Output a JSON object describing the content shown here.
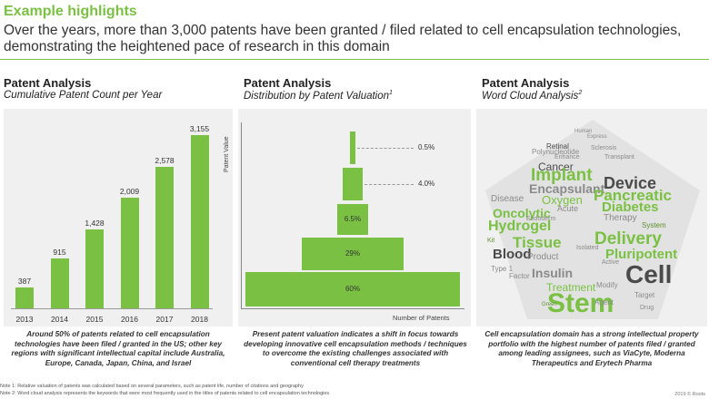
{
  "header": {
    "title": "Example highlights",
    "subtitle": "Over the years, more than 3,000 patents have been granted / filed related to cell encapsulation technologies, demonstrating the heightened pace of research in this domain"
  },
  "panels": [
    {
      "title": "Patent Analysis",
      "subtitle": "Cumulative Patent Count per Year",
      "sup": "",
      "caption": "Around 50% of patents related to cell encapsulation technologies have been filed / granted in the US; other key regions with significant intellectual capital include Australia, Europe, Canada, Japan, China, and Israel"
    },
    {
      "title": "Patent Analysis",
      "subtitle": "Distribution by Patent Valuation",
      "sup": "1",
      "caption": "Present patent valuation indicates a shift in focus towards developing innovative cell encapsulation methods / techniques to overcome the existing challenges associated with conventional cell therapy treatments"
    },
    {
      "title": "Patent Analysis",
      "subtitle": "Word Cloud Analysis",
      "sup": "2",
      "caption": "Cell encapsulation domain has a strong intellectual property portfolio with the highest number of patents filed / granted among leading assignees, such as ViaCyte, Moderna Therapeutics and Erytech Pharma"
    }
  ],
  "chart_data": [
    {
      "type": "bar",
      "categories": [
        "2013",
        "2014",
        "2015",
        "2016",
        "2017",
        "2018"
      ],
      "values": [
        387,
        915,
        1428,
        2009,
        2578,
        3155
      ],
      "value_labels": [
        "387",
        "915",
        "1,428",
        "2,009",
        "2,578",
        "3,155"
      ],
      "ylim": [
        0,
        3300
      ],
      "color": "#7ac143"
    },
    {
      "type": "bar",
      "orientation": "horizontal-stacked-tiers",
      "categories": [
        "0.5%",
        "4.0%",
        "6.5%",
        "29%",
        "60%"
      ],
      "values": [
        0.5,
        4.0,
        6.5,
        29,
        60
      ],
      "xlabel": "Number of Patents",
      "ylabel": "Patent Value",
      "color": "#7ac143"
    }
  ],
  "word_cloud": {
    "words": [
      "Cancer",
      "Express",
      "Retinal",
      "Human",
      "Sclerosis",
      "Transplant",
      "Polynucleotide",
      "Enhance",
      "Implant",
      "Encapsulant",
      "Device",
      "Oxygen",
      "Pancreatic",
      "Disease",
      "Acute",
      "Diabetes",
      "Oncolytic",
      "Endoderm",
      "Therapy",
      "Hydrogel",
      "System",
      "Delivery",
      "Tissue",
      "Pluripotent",
      "Blood",
      "Product",
      "Isolated",
      "Cell",
      "Insulin",
      "Type 1",
      "Factor",
      "Treatment",
      "Modify",
      "Stem",
      "Target",
      "Agent",
      "Drug",
      "Active",
      "Kit",
      "Green"
    ],
    "colors": [
      "#7ac143",
      "#4a4a4a",
      "#9bbf7a",
      "#8a8a8a",
      "#5c8f2e"
    ]
  },
  "footer": {
    "note1": "Note 1: Relative valuation of patents was calculated based on several parameters, such as patent life, number of citations and geography",
    "note2": "Note 2: Word cloud analysis represents the keywords that were most frequently used in the titles of patents related to cell encapsulation technologies",
    "copyright": "2019 © Roots"
  }
}
